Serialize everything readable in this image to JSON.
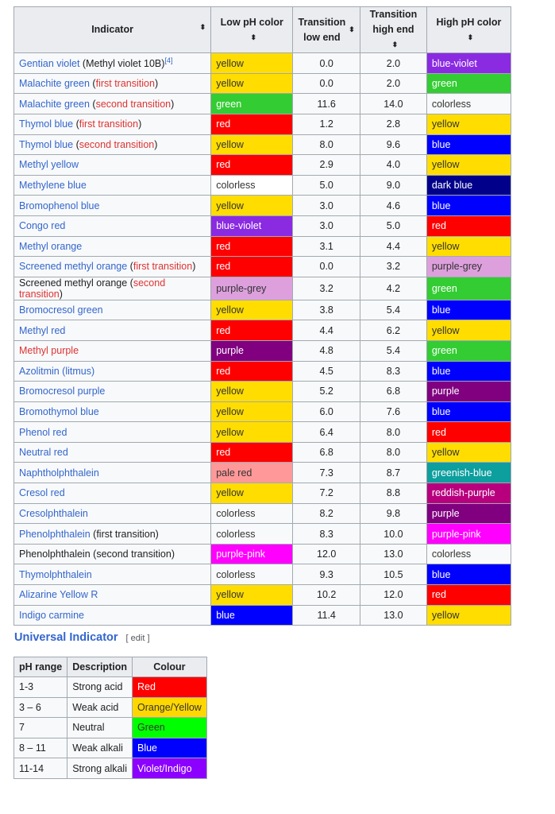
{
  "main_table": {
    "headers": [
      "Indicator",
      "Low pH color",
      "Transition low end",
      "Transition high end",
      "High pH color"
    ],
    "header_lines": [
      [
        "Indicator"
      ],
      [
        "Low pH color"
      ],
      [
        "Transition",
        "low end"
      ],
      [
        "Transition",
        "high end"
      ],
      [
        "High pH color"
      ]
    ],
    "rows": [
      {
        "name": "Gentian violet",
        "name_style": "link",
        "note": "Methyl violet 10B",
        "note_style": "black",
        "ref": "[4]",
        "low": "yellow",
        "low_bg": "#FFDD00",
        "lo": "0.0",
        "hi": "2.0",
        "high": "blue-violet",
        "high_bg": "#8A2BE2"
      },
      {
        "name": "Malachite green",
        "name_style": "link",
        "note": "first transition",
        "note_style": "red",
        "low": "yellow",
        "low_bg": "#FFDD00",
        "lo": "0.0",
        "hi": "2.0",
        "high": "green",
        "high_bg": "#33CC33"
      },
      {
        "name": "Malachite green",
        "name_style": "link",
        "note": "second transition",
        "note_style": "red",
        "low": "green",
        "low_bg": "#33CC33",
        "lo": "11.6",
        "hi": "14.0",
        "high": "colorless",
        "high_bg": ""
      },
      {
        "name": "Thymol blue",
        "name_style": "link",
        "note": "first transition",
        "note_style": "red",
        "low": "red",
        "low_bg": "#FF0000",
        "lo": "1.2",
        "hi": "2.8",
        "high": "yellow",
        "high_bg": "#FFDD00"
      },
      {
        "name": "Thymol blue",
        "name_style": "link",
        "note": "second transition",
        "note_style": "red",
        "low": "yellow",
        "low_bg": "#FFDD00",
        "lo": "8.0",
        "hi": "9.6",
        "high": "blue",
        "high_bg": "#0000FF"
      },
      {
        "name": "Methyl yellow",
        "name_style": "link",
        "low": "red",
        "low_bg": "#FF0000",
        "lo": "2.9",
        "hi": "4.0",
        "high": "yellow",
        "high_bg": "#FFDD00"
      },
      {
        "name": "Methylene blue",
        "name_style": "link",
        "low": "colorless",
        "low_bg": "#FFFFFF",
        "lo": "5.0",
        "hi": "9.0",
        "high": "dark blue",
        "high_bg": "#00008B"
      },
      {
        "name": "Bromophenol blue",
        "name_style": "link",
        "low": "yellow",
        "low_bg": "#FFDD00",
        "lo": "3.0",
        "hi": "4.6",
        "high": "blue",
        "high_bg": "#0000FF"
      },
      {
        "name": "Congo red",
        "name_style": "link",
        "low": "blue-violet",
        "low_bg": "#8A2BE2",
        "lo": "3.0",
        "hi": "5.0",
        "high": "red",
        "high_bg": "#FF0000"
      },
      {
        "name": "Methyl orange",
        "name_style": "link",
        "low": "red",
        "low_bg": "#FF0000",
        "lo": "3.1",
        "hi": "4.4",
        "high": "yellow",
        "high_bg": "#FFDD00"
      },
      {
        "name": "Screened methyl orange",
        "name_style": "link",
        "note": "first transition",
        "note_style": "red",
        "low": "red",
        "low_bg": "#FF0000",
        "lo": "0.0",
        "hi": "3.2",
        "high": "purple-grey",
        "high_bg": "#DDA0DD"
      },
      {
        "name": "Screened methyl orange",
        "name_style": "black",
        "note": "second transition",
        "note_style": "red",
        "low": "purple-grey",
        "low_bg": "#DDA0DD",
        "lo": "3.2",
        "hi": "4.2",
        "high": "green",
        "high_bg": "#33CC33"
      },
      {
        "name": "Bromocresol green",
        "name_style": "link",
        "low": "yellow",
        "low_bg": "#FFDD00",
        "lo": "3.8",
        "hi": "5.4",
        "high": "blue",
        "high_bg": "#0000FF"
      },
      {
        "name": "Methyl red",
        "name_style": "link",
        "low": "red",
        "low_bg": "#FF0000",
        "lo": "4.4",
        "hi": "6.2",
        "high": "yellow",
        "high_bg": "#FFDD00"
      },
      {
        "name": "Methyl purple",
        "name_style": "red",
        "low": "purple",
        "low_bg": "#800080",
        "lo": "4.8",
        "hi": "5.4",
        "high": "green",
        "high_bg": "#33CC33"
      },
      {
        "name": "Azolitmin (litmus)",
        "name_style": "link",
        "low": "red",
        "low_bg": "#FF0000",
        "lo": "4.5",
        "hi": "8.3",
        "high": "blue",
        "high_bg": "#0000FF"
      },
      {
        "name": "Bromocresol purple",
        "name_style": "link",
        "low": "yellow",
        "low_bg": "#FFDD00",
        "lo": "5.2",
        "hi": "6.8",
        "high": "purple",
        "high_bg": "#800080"
      },
      {
        "name": "Bromothymol blue",
        "name_style": "link",
        "low": "yellow",
        "low_bg": "#FFDD00",
        "lo": "6.0",
        "hi": "7.6",
        "high": "blue",
        "high_bg": "#0000FF"
      },
      {
        "name": "Phenol red",
        "name_style": "link",
        "low": "yellow",
        "low_bg": "#FFDD00",
        "lo": "6.4",
        "hi": "8.0",
        "high": "red",
        "high_bg": "#FF0000"
      },
      {
        "name": "Neutral red",
        "name_style": "link",
        "low": "red",
        "low_bg": "#FF0000",
        "lo": "6.8",
        "hi": "8.0",
        "high": "yellow",
        "high_bg": "#FFDD00"
      },
      {
        "name": "Naphtholphthalein",
        "name_style": "link",
        "low": "pale red",
        "low_bg": "#FF9999",
        "lo": "7.3",
        "hi": "8.7",
        "high": "greenish-blue",
        "high_bg": "#0D9E9E"
      },
      {
        "name": "Cresol red",
        "name_style": "link",
        "low": "yellow",
        "low_bg": "#FFDD00",
        "lo": "7.2",
        "hi": "8.8",
        "high": "reddish-purple",
        "high_bg": "#B8007F"
      },
      {
        "name": "Cresolphthalein",
        "name_style": "link",
        "low": "colorless",
        "low_bg": "",
        "lo": "8.2",
        "hi": "9.8",
        "high": "purple",
        "high_bg": "#800080"
      },
      {
        "name": "Phenolphthalein",
        "name_style": "link",
        "note": "first transition",
        "note_style": "black",
        "low": "colorless",
        "low_bg": "",
        "lo": "8.3",
        "hi": "10.0",
        "high": "purple-pink",
        "high_bg": "#FF00FF"
      },
      {
        "name": "Phenolphthalein",
        "name_style": "black",
        "note": "second transition",
        "note_style": "black",
        "low": "purple-pink",
        "low_bg": "#FF00FF",
        "lo": "12.0",
        "hi": "13.0",
        "high": "colorless",
        "high_bg": ""
      },
      {
        "name": "Thymolphthalein",
        "name_style": "link",
        "low": "colorless",
        "low_bg": "",
        "lo": "9.3",
        "hi": "10.5",
        "high": "blue",
        "high_bg": "#0000FF"
      },
      {
        "name": "Alizarine Yellow R",
        "name_style": "link",
        "low": "yellow",
        "low_bg": "#FFDD00",
        "lo": "10.2",
        "hi": "12.0",
        "high": "red",
        "high_bg": "#FF0000"
      },
      {
        "name": "Indigo carmine",
        "name_style": "link",
        "low": "blue",
        "low_bg": "#0000FF",
        "lo": "11.4",
        "hi": "13.0",
        "high": "yellow",
        "high_bg": "#FFDD00"
      }
    ]
  },
  "universal": {
    "heading": "Universal Indicator",
    "edit_label": "[ edit ]",
    "headers": [
      "pH range",
      "Description",
      "Colour"
    ],
    "rows": [
      {
        "range": "1-3",
        "desc": "Strong acid",
        "colour": "Red",
        "bg": "#FF0000",
        "fg": "#ffffff"
      },
      {
        "range": "3 – 6",
        "desc": "Weak acid",
        "colour": "Orange/Yellow",
        "bg": "#FFD700",
        "fg": "#333333"
      },
      {
        "range": "7",
        "desc": "Neutral",
        "colour": "Green",
        "bg": "#00FF00",
        "fg": "#333333"
      },
      {
        "range": "8 – 11",
        "desc": "Weak alkali",
        "colour": "Blue",
        "bg": "#0000FF",
        "fg": "#ffffff"
      },
      {
        "range": "11-14",
        "desc": "Strong alkali",
        "colour": "Violet/Indigo",
        "bg": "#8B00FF",
        "fg": "#ffffff"
      }
    ]
  }
}
